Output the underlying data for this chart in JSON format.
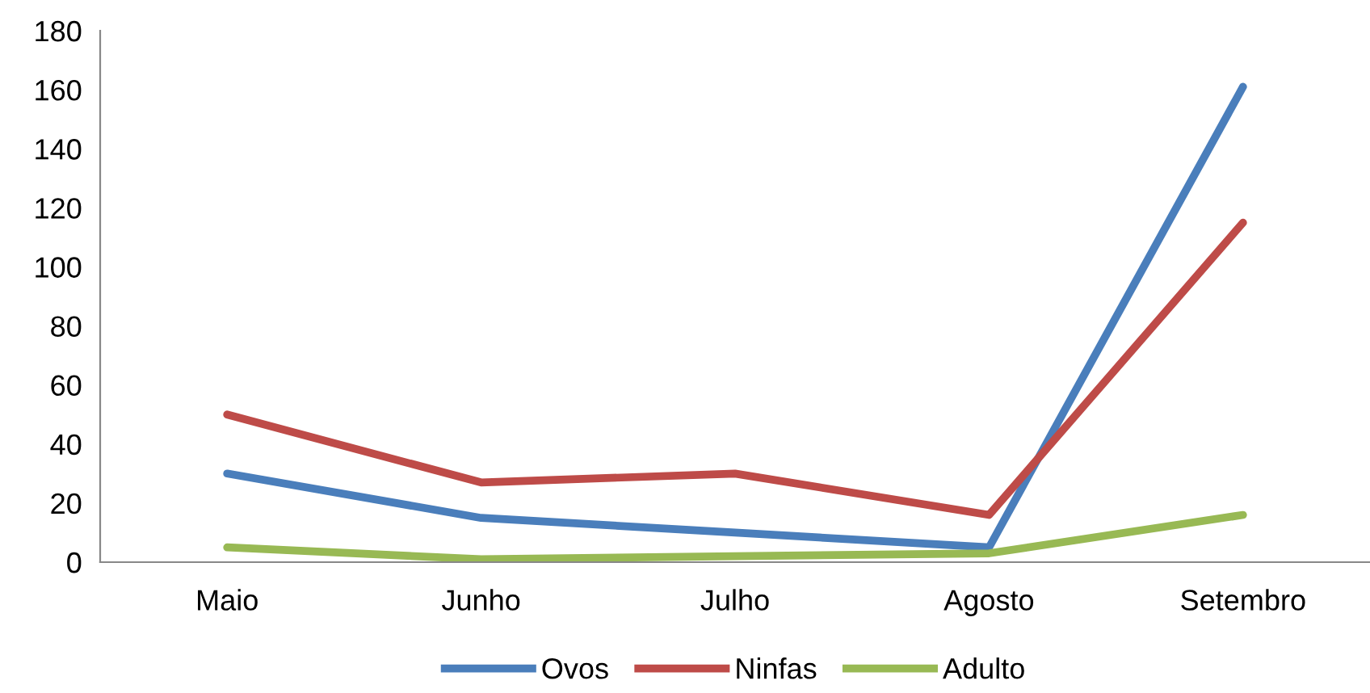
{
  "chart_data": {
    "type": "line",
    "categories": [
      "Maio",
      "Junho",
      "Julho",
      "Agosto",
      "Setembro"
    ],
    "series": [
      {
        "name": "Ovos",
        "color": "#4a7ebb",
        "values": [
          30,
          15,
          10,
          5,
          161
        ]
      },
      {
        "name": "Ninfas",
        "color": "#be4b48",
        "values": [
          50,
          27,
          30,
          16,
          115
        ]
      },
      {
        "name": "Adulto",
        "color": "#98b954",
        "values": [
          5,
          1,
          2,
          3,
          16
        ]
      }
    ],
    "ylim": [
      0,
      180
    ],
    "yticks": [
      0,
      20,
      40,
      60,
      80,
      100,
      120,
      140,
      160,
      180
    ],
    "grid": false,
    "legend": "bottom",
    "marker": "none",
    "line_style": "solid"
  }
}
